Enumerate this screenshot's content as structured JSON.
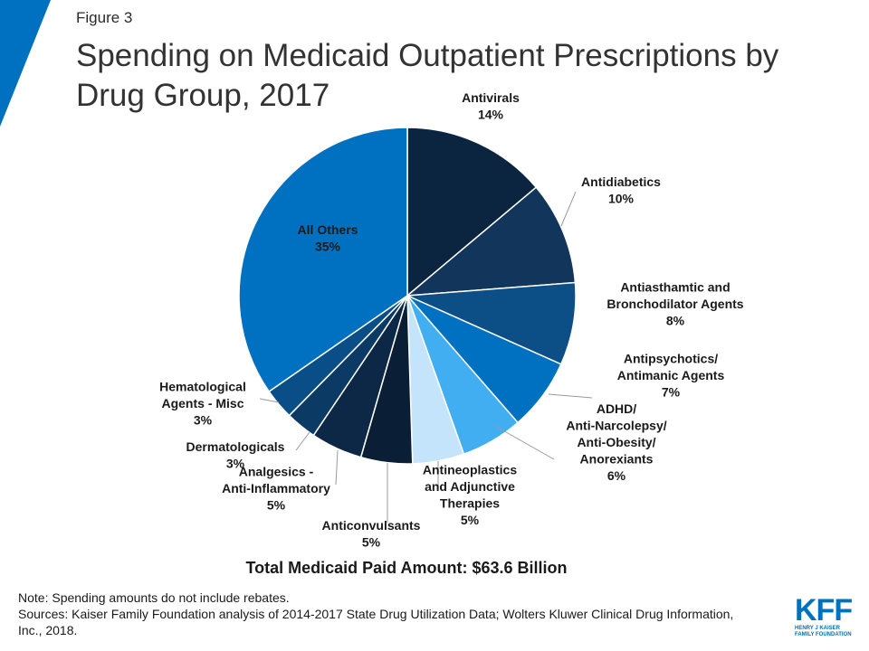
{
  "header": {
    "figure_label": "Figure 3",
    "title": "Spending on Medicaid Outpatient Prescriptions by Drug Group, 2017"
  },
  "chart_data": {
    "type": "pie",
    "title": "Spending on Medicaid Outpatient Prescriptions by Drug Group, 2017",
    "slices": [
      {
        "label": [
          "Antivirals"
        ],
        "pct_label": "14%",
        "value": 14,
        "color": "#0b2540"
      },
      {
        "label": [
          "Antidiabetics"
        ],
        "pct_label": "10%",
        "value": 10,
        "color": "#12355c"
      },
      {
        "label": [
          "Antiasthamtic and",
          "Bronchodilator Agents"
        ],
        "pct_label": "8%",
        "value": 8,
        "color": "#0b4f86"
      },
      {
        "label": [
          "Antipsychotics/",
          "Antimanic Agents"
        ],
        "pct_label": "7%",
        "value": 7,
        "color": "#0071c1"
      },
      {
        "label": [
          "ADHD/",
          "Anti-Narcolepsy/",
          "Anti-Obesity/",
          "Anorexiants"
        ],
        "pct_label": "6%",
        "value": 6,
        "color": "#41aef2"
      },
      {
        "label": [
          "Antineoplastics",
          "and Adjunctive",
          "Therapies"
        ],
        "pct_label": "5%",
        "value": 5,
        "color": "#c4e4fb"
      },
      {
        "label": [
          "Anticonvulsants"
        ],
        "pct_label": "5%",
        "value": 5,
        "color": "#0a1f35"
      },
      {
        "label": [
          "Analgesics -",
          "Anti-Inflammatory"
        ],
        "pct_label": "5%",
        "value": 5,
        "color": "#0c2846"
      },
      {
        "label": [
          "Dermatologicals"
        ],
        "pct_label": "3%",
        "value": 3,
        "color": "#0b3a64"
      },
      {
        "label": [
          "Hematological",
          "Agents - Misc"
        ],
        "pct_label": "3%",
        "value": 3,
        "color": "#0a4e88"
      },
      {
        "label": [
          "All Others"
        ],
        "pct_label": "35%",
        "value": 35,
        "color": "#0071c1"
      }
    ]
  },
  "total_label": "Total Medicaid Paid Amount: $63.6 Billion",
  "notes": {
    "note": "Note: Spending amounts do not include rebates.",
    "sources": "Sources: Kaiser Family Foundation analysis of 2014-2017 State Drug Utilization Data; Wolters Kluwer Clinical Drug Information, Inc., 2018."
  },
  "logo": {
    "mark": "KFF",
    "subtitle": [
      "HENRY J KAISER",
      "FAMILY FOUNDATION"
    ]
  },
  "colors": {
    "brand_blue": "#0071bc",
    "corner_triangle": "#0070c0"
  }
}
